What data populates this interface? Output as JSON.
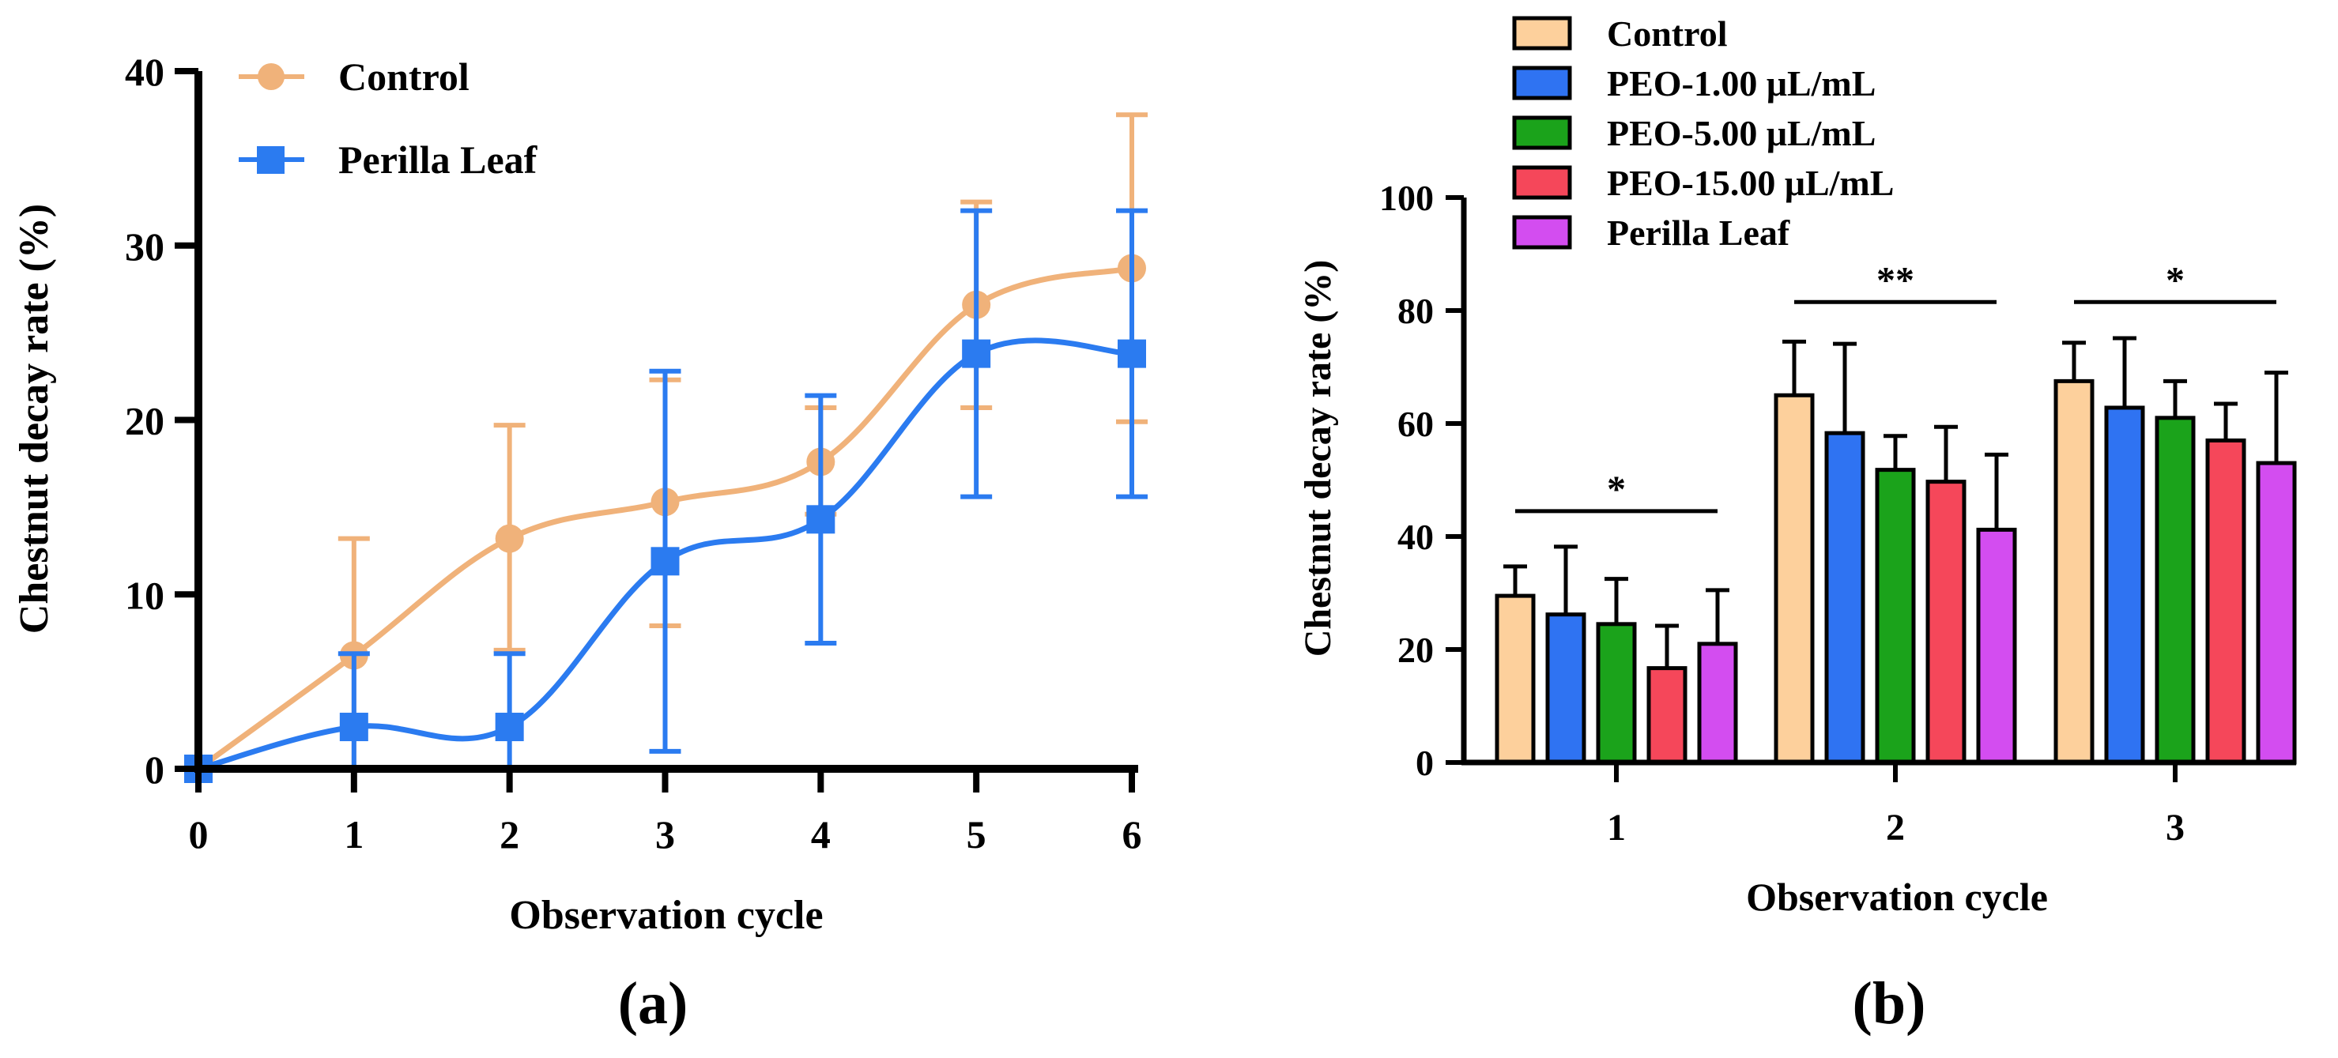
{
  "colors": {
    "control_line": "#F0B27A",
    "perilla_line": "#2B7BF0",
    "bar_control": "#FDD09C",
    "bar_peo1": "#2F73F2",
    "bar_peo5": "#1BA31B",
    "bar_peo15": "#F5475A",
    "bar_perilla": "#D34DF0",
    "axis": "#000000"
  },
  "chart_data": [
    {
      "type": "line",
      "panel_label": "(a)",
      "xlabel": "Observation cycle",
      "ylabel": "Chestnut decay rate (%)",
      "x": [
        0,
        1,
        2,
        3,
        4,
        5,
        6
      ],
      "xticks": [
        "0",
        "1",
        "2",
        "3",
        "4",
        "5",
        "6"
      ],
      "ylim": [
        0,
        40
      ],
      "yticks": [
        "0",
        "10",
        "20",
        "30",
        "40"
      ],
      "legend_position": "top-left",
      "series": [
        {
          "name": "Control",
          "marker": "circle",
          "values": [
            0,
            6.5,
            13.2,
            15.3,
            17.6,
            26.6,
            28.7
          ],
          "err_upper": [
            0,
            6.7,
            6.5,
            7.0,
            3.1,
            5.9,
            8.8
          ],
          "err_lower": [
            0,
            6.5,
            6.4,
            7.1,
            3.0,
            5.9,
            8.8
          ]
        },
        {
          "name": "Perilla Leaf",
          "marker": "square",
          "values": [
            0,
            2.4,
            2.4,
            11.9,
            14.3,
            23.8,
            23.8
          ],
          "err_upper": [
            0,
            4.2,
            4.2,
            10.9,
            7.1,
            8.2,
            8.2
          ],
          "err_lower": [
            0,
            2.4,
            2.4,
            10.9,
            7.1,
            8.2,
            8.2
          ]
        }
      ]
    },
    {
      "type": "bar",
      "panel_label": "(b)",
      "xlabel": "Observation cycle",
      "ylabel": "Chestnut decay rate (%)",
      "categories": [
        "1",
        "2",
        "3"
      ],
      "ylim": [
        0,
        100
      ],
      "yticks": [
        "0",
        "20",
        "40",
        "60",
        "80",
        "100"
      ],
      "legend_position": "top",
      "series": [
        {
          "name": "Control",
          "values": [
            29.5,
            65,
            67.5
          ],
          "err": [
            5.2,
            9.5,
            6.8
          ]
        },
        {
          "name": "PEO-1.00 μL/mL",
          "values": [
            26.2,
            58.3,
            62.8
          ],
          "err": [
            12,
            15.8,
            12.3
          ]
        },
        {
          "name": "PEO-5.00 μL/mL",
          "values": [
            24.5,
            51.8,
            61
          ],
          "err": [
            8,
            6,
            6.5
          ]
        },
        {
          "name": "PEO-15.00 μL/mL",
          "values": [
            16.7,
            49.7,
            57
          ],
          "err": [
            7.5,
            9.7,
            6.5
          ]
        },
        {
          "name": "Perilla Leaf",
          "values": [
            21,
            41.2,
            53
          ],
          "err": [
            9.5,
            13.3,
            16
          ]
        }
      ],
      "significance": [
        {
          "category": "1",
          "label": "*",
          "y": 44.5
        },
        {
          "category": "2",
          "label": "**",
          "y": 81.5
        },
        {
          "category": "3",
          "label": "*",
          "y": 81.5
        }
      ]
    }
  ]
}
